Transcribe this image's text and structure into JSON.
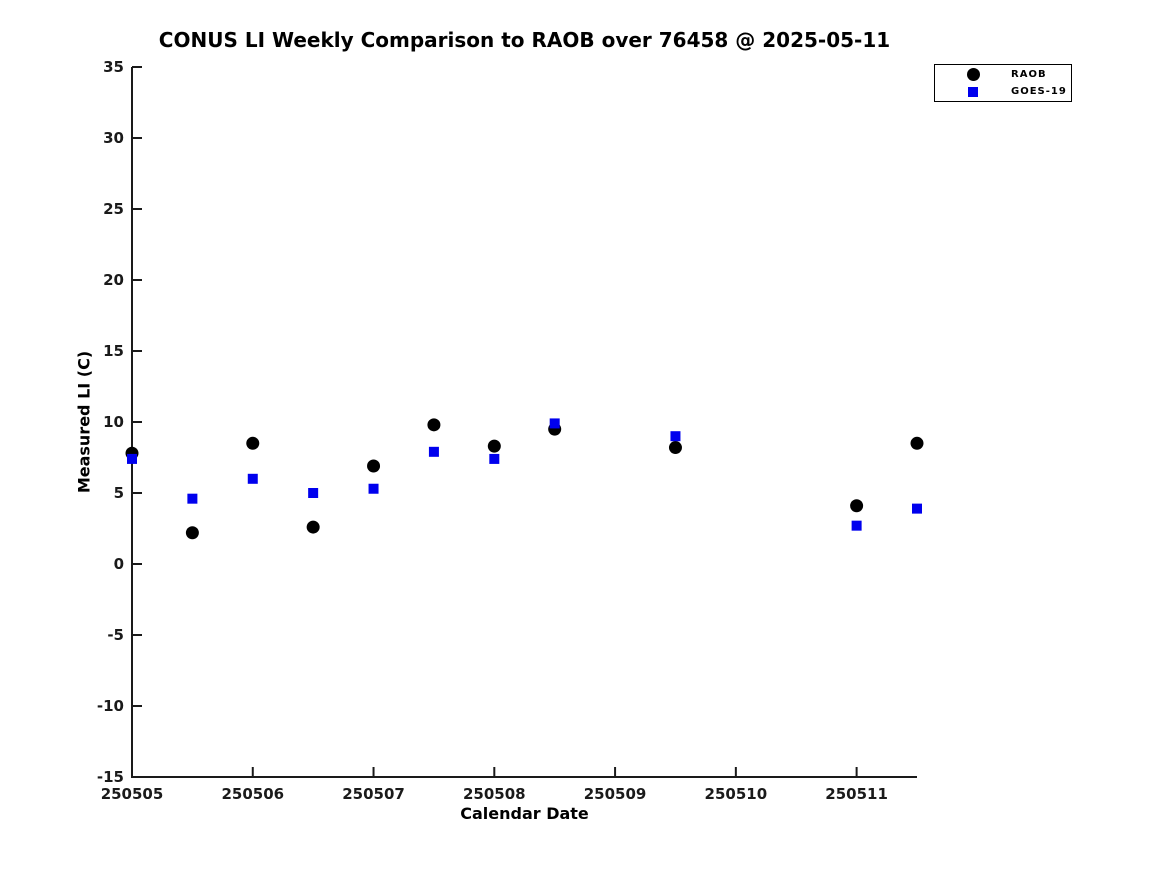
{
  "chart_data": {
    "type": "scatter",
    "title": "CONUS LI Weekly Comparison to RAOB over 76458 @ 2025-05-11",
    "xlabel": "Calendar Date",
    "ylabel": "Measured LI (C)",
    "xlim": [
      250505,
      250511.5
    ],
    "ylim": [
      -15,
      35
    ],
    "xticks": [
      250505,
      250506,
      250507,
      250508,
      250509,
      250510,
      250511
    ],
    "yticks": [
      -15,
      -10,
      -5,
      0,
      5,
      10,
      15,
      20,
      25,
      30,
      35
    ],
    "grid": false,
    "legend_position": "top-right",
    "axis_color": "#1a1a1a",
    "series": [
      {
        "name": "RAOB",
        "marker": "circle",
        "color": "#000000",
        "points": [
          [
            250505.0,
            7.8
          ],
          [
            250505.5,
            2.2
          ],
          [
            250506.0,
            8.5
          ],
          [
            250506.5,
            2.6
          ],
          [
            250507.0,
            6.9
          ],
          [
            250507.5,
            9.8
          ],
          [
            250508.0,
            8.3
          ],
          [
            250508.5,
            9.5
          ],
          [
            250509.5,
            8.2
          ],
          [
            250511.0,
            4.1
          ],
          [
            250511.5,
            8.5
          ]
        ]
      },
      {
        "name": "GOES-19",
        "marker": "square",
        "color": "#0000ee",
        "points": [
          [
            250505.0,
            7.4
          ],
          [
            250505.5,
            4.6
          ],
          [
            250506.0,
            6.0
          ],
          [
            250506.5,
            5.0
          ],
          [
            250507.0,
            5.3
          ],
          [
            250507.5,
            7.9
          ],
          [
            250508.0,
            7.4
          ],
          [
            250508.5,
            9.9
          ],
          [
            250509.5,
            9.0
          ],
          [
            250511.0,
            2.7
          ],
          [
            250511.5,
            3.9
          ]
        ]
      }
    ]
  }
}
